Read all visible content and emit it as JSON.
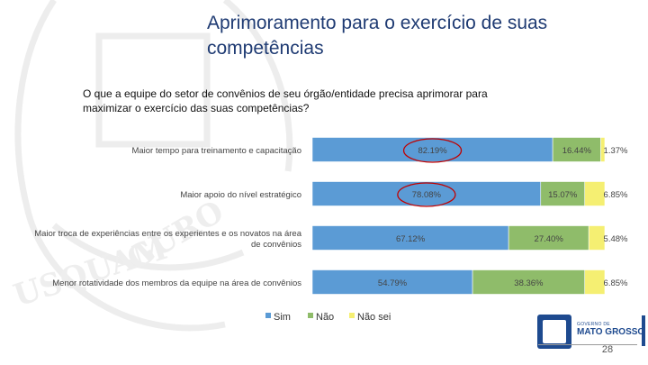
{
  "slide": {
    "title": "Aprimoramento para o exercício de suas competências",
    "subtitle": "O que a equipe do setor de convênios de seu órgão/entidade precisa aprimorar para maximizar o exercício das suas competências?",
    "page_number": "28",
    "logo_small": "GOVERNO DE",
    "logo_text": "MATO GROSSO"
  },
  "colors": {
    "sim": "#5b9bd5",
    "nao": "#8fbc6a",
    "nao_sei": "#f5ef72",
    "highlight": "#c00000",
    "title": "#1f3b73"
  },
  "chart_data": {
    "type": "bar",
    "orientation": "horizontal-stacked-100",
    "categories": [
      "Maior tempo para treinamento e capacitação",
      "Maior apoio do nível estratégico",
      "Maior troca de experiências entre os experientes e os novatos na área de convênios",
      "Menor rotatividade dos membros da equipe na área de convênios"
    ],
    "category_lines": [
      [
        "Maior tempo para treinamento e capacitação"
      ],
      [
        "Maior apoio do nível estratégico"
      ],
      [
        "Maior troca de experiências entre os experientes e os novatos na área",
        "de convênios"
      ],
      [
        "Menor rotatividade dos membros da equipe na área de convênios"
      ]
    ],
    "series": [
      {
        "name": "Sim",
        "color": "#5b9bd5",
        "values": [
          82.19,
          78.08,
          67.12,
          54.79
        ],
        "labels": [
          "82.19%",
          "78.08%",
          "67.12%",
          "54.79%"
        ]
      },
      {
        "name": "Não",
        "color": "#8fbc6a",
        "values": [
          16.44,
          15.07,
          27.4,
          38.36
        ],
        "labels": [
          "16.44%",
          "15.07%",
          "27.40%",
          "38.36%"
        ]
      },
      {
        "name": "Não sei",
        "color": "#f5ef72",
        "values": [
          1.37,
          6.85,
          5.48,
          6.85
        ],
        "labels": [
          "1.37%",
          "6.85%",
          "5.48%",
          "6.85%"
        ]
      }
    ],
    "highlighted": [
      "82.19%",
      "78.08%"
    ],
    "xlim": [
      0,
      100
    ],
    "legend_position": "bottom"
  }
}
